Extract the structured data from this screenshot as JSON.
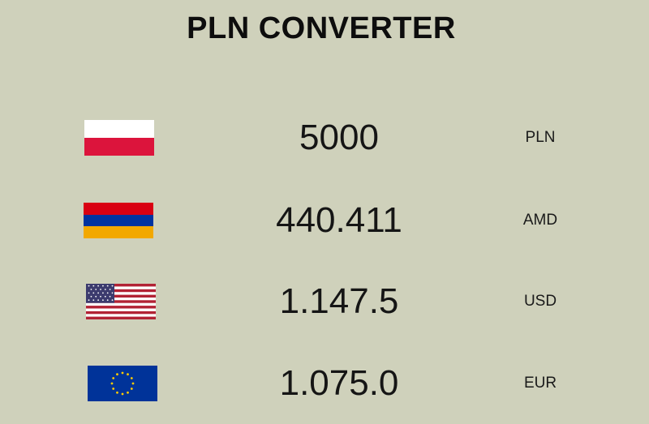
{
  "app": {
    "title": "PLN CONVERTER"
  },
  "rows": [
    {
      "flag": "poland-flag-icon",
      "amount": "5000",
      "currency": "PLN"
    },
    {
      "flag": "armenia-flag-icon",
      "amount": "440.411",
      "currency": "AMD"
    },
    {
      "flag": "usa-flag-icon",
      "amount": "1.147.5",
      "currency": "USD"
    },
    {
      "flag": "eu-flag-icon",
      "amount": "1.075.0",
      "currency": "EUR"
    }
  ],
  "colors": {
    "background": "#cfd1bb",
    "text": "#111111",
    "poland_red": "#dc143c",
    "armenia_red": "#d90012",
    "armenia_blue": "#0033a0",
    "armenia_orange": "#f2a800",
    "usa_red": "#b22234",
    "usa_blue": "#3c3b6e",
    "eu_blue": "#003399",
    "eu_gold": "#ffcc00"
  }
}
